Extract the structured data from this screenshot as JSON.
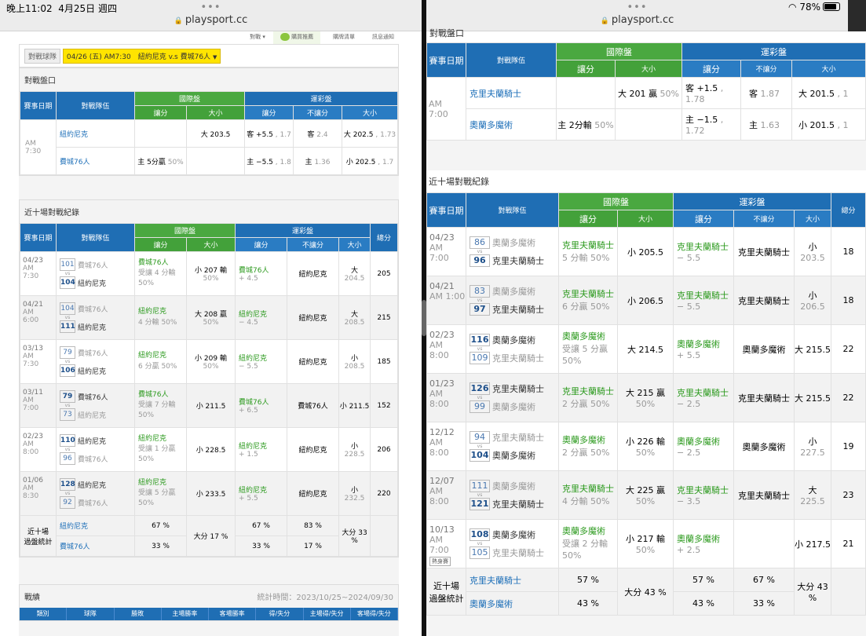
{
  "status": {
    "time": "晚上11:02",
    "date": "4月25日 週四",
    "battery": "78%"
  },
  "browser": {
    "dots": "•••",
    "url": "playsport.cc"
  },
  "left": {
    "nav": [
      "對戰 ▾",
      "購買推薦",
      "購牌清單",
      "訊息通知"
    ],
    "match_label": "對戰球隊",
    "match_select": "04/26 (五) AM7:30　紐約尼克 v.s 費城76人",
    "odds_title": "對戰盤口",
    "h": {
      "date": "賽事日期",
      "teams": "對戰隊伍",
      "intl": "國際盤",
      "sport": "運彩盤",
      "spread": "讓分",
      "ou": "大小",
      "nospread": "不讓分",
      "total": "總分"
    },
    "odds": {
      "date": "AM\n7:30",
      "rows": [
        {
          "team": "紐約尼克",
          "spread": "",
          "ou": "大 203.5",
          "s_sp": "客 +5.5",
          "s_sp2": "1.7",
          "s_no": "客",
          "s_no2": "2.4",
          "s_ou": "大 202.5",
          "s_ou2": "1.73"
        },
        {
          "team": "費城76人",
          "spread": "主 5分贏",
          "spread2": "50%",
          "ou": "",
          "s_sp": "主 −5.5",
          "s_sp2": "1.8",
          "s_no": "主",
          "s_no2": "1.36",
          "s_ou": "小 202.5",
          "s_ou2": "1.7"
        }
      ]
    },
    "recent_title": "近十場對戰紀錄",
    "recent": [
      {
        "d": "04/23",
        "t": "AM\n7:30",
        "s1": "101",
        "t1": "費城76人",
        "s2": "104",
        "t2": "紐約尼克",
        "w": 2,
        "ic": "費城76人",
        "ic2": "受讓 4 分輸",
        "ic3": "50%",
        "ou": "小 207 輸",
        "ou2": "50%",
        "sp": "費城76人",
        "sp2": "+ 4.5",
        "no": "紐約尼克",
        "o": "大",
        "o2": "204.5",
        "tot": "205"
      },
      {
        "d": "04/21",
        "t": "AM\n6:00",
        "s1": "104",
        "t1": "費城76人",
        "s2": "111",
        "t2": "紐約尼克",
        "w": 2,
        "ic": "紐約尼克",
        "ic2": "4 分輸 50%",
        "ic3": "",
        "ou": "大 208 贏",
        "ou2": "50%",
        "sp": "紐約尼克",
        "sp2": "− 4.5",
        "no": "紐約尼克",
        "o": "大",
        "o2": "208.5",
        "tot": "215"
      },
      {
        "d": "03/13",
        "t": "AM\n7:30",
        "s1": "79",
        "t1": "費城76人",
        "s2": "106",
        "t2": "紐約尼克",
        "w": 2,
        "ic": "紐約尼克",
        "ic2": "6 分贏 50%",
        "ic3": "",
        "ou": "小 209 輸",
        "ou2": "50%",
        "sp": "紐約尼克",
        "sp2": "− 5.5",
        "no": "紐約尼克",
        "o": "小",
        "o2": "208.5",
        "tot": "185"
      },
      {
        "d": "03/11",
        "t": "AM\n7:00",
        "s1": "79",
        "t1": "費城76人",
        "s2": "73",
        "t2": "紐約尼克",
        "w": 1,
        "ic": "費城76人",
        "ic2": "受讓 7 分輸",
        "ic3": "50%",
        "ou": "小 211.5",
        "ou2": "",
        "sp": "費城76人",
        "sp2": "+ 6.5",
        "no": "費城76人",
        "o": "小 211.5",
        "o2": "",
        "tot": "152"
      },
      {
        "d": "02/23",
        "t": "AM\n8:00",
        "s1": "110",
        "t1": "紐約尼克",
        "s2": "96",
        "t2": "費城76人",
        "w": 1,
        "ic": "紐約尼克",
        "ic2": "受讓 1 分贏",
        "ic3": "50%",
        "ou": "小 228.5",
        "ou2": "",
        "sp": "紐約尼克",
        "sp2": "+ 1.5",
        "no": "紐約尼克",
        "o": "小",
        "o2": "228.5",
        "tot": "206"
      },
      {
        "d": "01/06",
        "t": "AM\n8:30",
        "s1": "128",
        "t1": "紐約尼克",
        "s2": "92",
        "t2": "費城76人",
        "w": 1,
        "ic": "紐約尼克",
        "ic2": "受讓 5 分贏",
        "ic3": "50%",
        "ou": "小 233.5",
        "ou2": "",
        "sp": "紐約尼克",
        "sp2": "+ 5.5",
        "no": "紐約尼克",
        "o": "小",
        "o2": "232.5",
        "tot": "220"
      }
    ],
    "stats": {
      "label": "近十場\n過盤統計",
      "t1": "紐約尼克",
      "t2": "費城76人",
      "ic1": "67 %",
      "ic2": "33 %",
      "ou": "大分 17 %",
      "sp1": "67 %",
      "sp2": "33 %",
      "no1": "83 %",
      "no2": "17 %",
      "o": "大分 33 %"
    },
    "record_title": "戰績",
    "record_time": "統計時間：2023/10/25~2024/09/30",
    "record_cols": [
      "類別",
      "球隊",
      "勝敗",
      "主場勝率",
      "客場勝率",
      "得/失分",
      "主場得/失分",
      "客場得/失分"
    ]
  },
  "right": {
    "odds_title": "對戰盤口",
    "odds": {
      "date": "AM\n7:00",
      "rows": [
        {
          "team": "克里夫蘭騎士",
          "spread": "",
          "ou": "大 201 贏",
          "ou2": "50%",
          "s_sp": "客 +1.5",
          "s_sp2": "1.78",
          "s_no": "客",
          "s_no2": "1.87",
          "s_ou": "大 201.5",
          "s_ou2": "1"
        },
        {
          "team": "奧蘭多魔術",
          "spread": "主 2分輸",
          "spread2": "50%",
          "ou": "",
          "ou2": "",
          "s_sp": "主 −1.5",
          "s_sp2": "1.72",
          "s_no": "主",
          "s_no2": "1.63",
          "s_ou": "小 201.5",
          "s_ou2": "1"
        }
      ]
    },
    "recent_title": "近十場對戰紀錄",
    "recent": [
      {
        "d": "04/23",
        "t": "AM\n7:00",
        "s1": "86",
        "t1": "奧蘭多魔術",
        "s2": "96",
        "t2": "克里夫蘭騎士",
        "w": 2,
        "ic": "克里夫蘭騎士",
        "ic2": "5 分輸 50%",
        "ou": "小 205.5",
        "ou2": "",
        "sp": "克里夫蘭騎士",
        "sp2": "− 5.5",
        "no": "克里夫蘭騎士",
        "o": "小",
        "o2": "203.5",
        "tot": "18"
      },
      {
        "d": "04/21",
        "t": "AM 1:00",
        "s1": "83",
        "t1": "奧蘭多魔術",
        "s2": "97",
        "t2": "克里夫蘭騎士",
        "w": 2,
        "ic": "克里夫蘭騎士",
        "ic2": "6 分贏 50%",
        "ou": "小 206.5",
        "ou2": "",
        "sp": "克里夫蘭騎士",
        "sp2": "− 5.5",
        "no": "克里夫蘭騎士",
        "o": "小",
        "o2": "206.5",
        "tot": "18"
      },
      {
        "d": "02/23",
        "t": "AM\n8:00",
        "s1": "116",
        "t1": "奧蘭多魔術",
        "s2": "109",
        "t2": "克里夫蘭騎士",
        "w": 1,
        "ic": "奧蘭多魔術",
        "ic2": "受讓 5 分贏",
        "ic3": "50%",
        "ou": "大 214.5",
        "ou2": "",
        "sp": "奧蘭多魔術",
        "sp2": "+ 5.5",
        "no": "奧蘭多魔術",
        "o": "大 215.5",
        "o2": "",
        "tot": "22"
      },
      {
        "d": "01/23",
        "t": "AM\n8:00",
        "s1": "126",
        "t1": "克里夫蘭騎士",
        "s2": "99",
        "t2": "奧蘭多魔術",
        "w": 1,
        "ic": "克里夫蘭騎士",
        "ic2": "2 分贏 50%",
        "ou": "大 215 贏",
        "ou2": "50%",
        "sp": "克里夫蘭騎士",
        "sp2": "− 2.5",
        "no": "克里夫蘭騎士",
        "o": "大 215.5",
        "o2": "",
        "tot": "22"
      },
      {
        "d": "12/12",
        "t": "AM\n8:00",
        "s1": "94",
        "t1": "克里夫蘭騎士",
        "s2": "104",
        "t2": "奧蘭多魔術",
        "w": 2,
        "ic": "奧蘭多魔術",
        "ic2": "2 分贏 50%",
        "ou": "小 226 輸",
        "ou2": "50%",
        "sp": "奧蘭多魔術",
        "sp2": "− 2.5",
        "no": "奧蘭多魔術",
        "o": "小",
        "o2": "227.5",
        "tot": "19"
      },
      {
        "d": "12/07",
        "t": "AM\n8:00",
        "s1": "111",
        "t1": "奧蘭多魔術",
        "s2": "121",
        "t2": "克里夫蘭騎士",
        "w": 2,
        "ic": "克里夫蘭騎士",
        "ic2": "4 分輸 50%",
        "ou": "大 225 贏",
        "ou2": "50%",
        "sp": "克里夫蘭騎士",
        "sp2": "− 3.5",
        "no": "克里夫蘭騎士",
        "o": "大",
        "o2": "225.5",
        "tot": "23"
      },
      {
        "d": "10/13",
        "t": "AM\n7:00",
        "tag": "熱身賽",
        "s1": "108",
        "t1": "奧蘭多魔術",
        "s2": "105",
        "t2": "克里夫蘭騎士",
        "w": 1,
        "ic": "奧蘭多魔術",
        "ic2": "受讓 2 分輸",
        "ic3": "50%",
        "ou": "小 217 輸",
        "ou2": "50%",
        "sp": "奧蘭多魔術",
        "sp2": "+ 2.5",
        "no": "",
        "o": "小 217.5",
        "o2": "",
        "tot": "21"
      }
    ],
    "stats": {
      "label": "近十場\n過盤統計",
      "t1": "克里夫蘭騎士",
      "t2": "奧蘭多魔術",
      "ic1": "57 %",
      "ic2": "43 %",
      "ou": "大分 43 %",
      "sp1": "57 %",
      "sp2": "43 %",
      "no1": "67 %",
      "no2": "33 %",
      "o": "大分 43 %"
    }
  }
}
